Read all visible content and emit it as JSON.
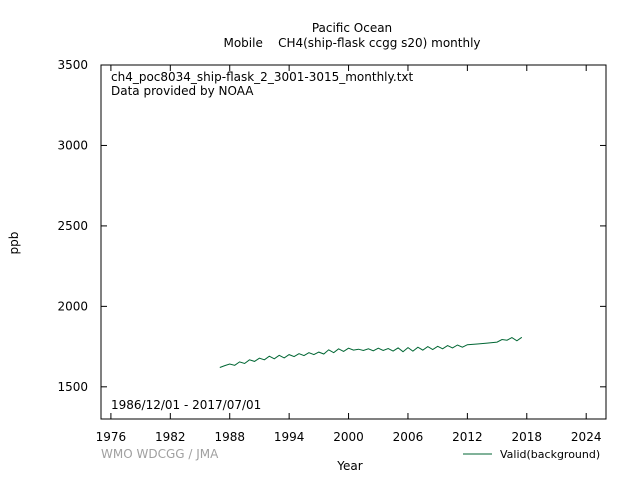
{
  "chart_data": {
    "type": "line",
    "title": "Pacific Ocean",
    "subtitle": "Mobile    CH4(ship-flask ccgg s20) monthly",
    "file_label": "ch4_poc8034_ship-flask_2_3001-3015_monthly.txt",
    "provider_label": "Data provided by NOAA",
    "period_label": "1986/12/01 - 2017/07/01",
    "xlabel": "Year",
    "ylabel": "ppb",
    "credit": "WMO WDCGG / JMA",
    "xlim": [
      1975,
      2026
    ],
    "ylim": [
      1300,
      3500
    ],
    "x_ticks": [
      1976,
      1982,
      1988,
      1994,
      2000,
      2006,
      2012,
      2018,
      2024
    ],
    "y_ticks": [
      1500,
      2000,
      2500,
      3000,
      3500
    ],
    "grid": false,
    "legend_position": "bottom-right",
    "series": [
      {
        "name": "Valid(background)",
        "color": "#006633",
        "x": [
          1987.0,
          1987.5,
          1988.0,
          1988.5,
          1989.0,
          1989.5,
          1990.0,
          1990.5,
          1991.0,
          1991.5,
          1992.0,
          1992.5,
          1993.0,
          1993.5,
          1994.0,
          1994.5,
          1995.0,
          1995.5,
          1996.0,
          1996.5,
          1997.0,
          1997.5,
          1998.0,
          1998.5,
          1999.0,
          1999.5,
          2000.0,
          2000.5,
          2001.0,
          2001.5,
          2002.0,
          2002.5,
          2003.0,
          2003.5,
          2004.0,
          2004.5,
          2005.0,
          2005.5,
          2006.0,
          2006.5,
          2007.0,
          2007.5,
          2008.0,
          2008.5,
          2009.0,
          2009.5,
          2010.0,
          2010.5,
          2011.0,
          2011.5,
          2012.0,
          2013.0,
          2014.0,
          2015.0,
          2015.5,
          2016.0,
          2016.5,
          2017.0,
          2017.5
        ],
        "values": [
          1620,
          1632,
          1642,
          1634,
          1655,
          1645,
          1668,
          1658,
          1678,
          1668,
          1690,
          1674,
          1696,
          1680,
          1700,
          1688,
          1706,
          1694,
          1712,
          1700,
          1716,
          1704,
          1730,
          1712,
          1736,
          1720,
          1740,
          1728,
          1734,
          1726,
          1736,
          1724,
          1740,
          1726,
          1738,
          1722,
          1742,
          1718,
          1744,
          1722,
          1746,
          1728,
          1750,
          1732,
          1752,
          1736,
          1756,
          1742,
          1760,
          1746,
          1762,
          1766,
          1772,
          1778,
          1794,
          1790,
          1806,
          1786,
          1808
        ]
      }
    ]
  }
}
